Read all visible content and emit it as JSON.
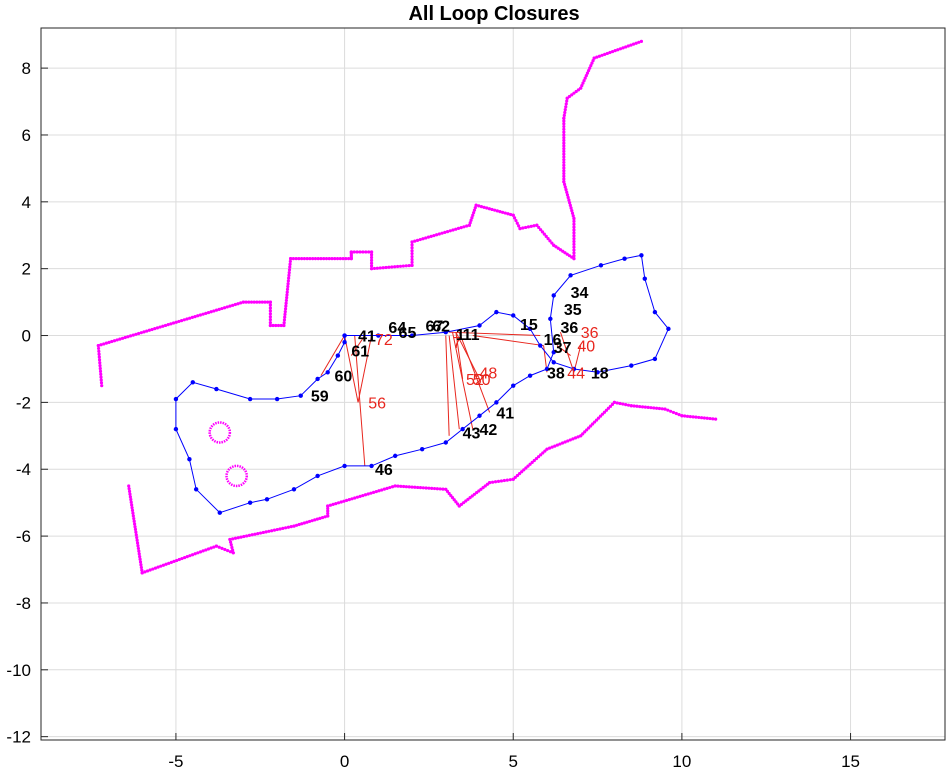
{
  "chart_data": {
    "type": "scatter",
    "title": "All Loop Closures",
    "xlabel": "",
    "ylabel": "",
    "xlim": [
      -9,
      17.8
    ],
    "ylim": [
      -12.1,
      9.2
    ],
    "xticks": [
      -5,
      0,
      5,
      10,
      15
    ],
    "yticks": [
      -12,
      -10,
      -8,
      -6,
      -4,
      -2,
      0,
      2,
      4,
      6,
      8
    ],
    "grid": true,
    "colors": {
      "map": "#ff00ff",
      "trajectory": "#0000ff",
      "closure": "#e8261e",
      "grid": "#dcdcdc",
      "text": "#000000"
    },
    "map_outline": [
      [
        -7.2,
        -1.5
      ],
      [
        -7.3,
        -0.3
      ],
      [
        -3.0,
        1.0
      ],
      [
        -2.2,
        1.0
      ],
      [
        -2.2,
        0.3
      ],
      [
        -1.8,
        0.3
      ],
      [
        -1.6,
        2.3
      ],
      [
        0.2,
        2.3
      ],
      [
        0.2,
        2.5
      ],
      [
        0.8,
        2.5
      ],
      [
        0.8,
        2.0
      ],
      [
        2.0,
        2.1
      ],
      [
        2.0,
        2.8
      ],
      [
        3.7,
        3.3
      ],
      [
        3.9,
        3.9
      ],
      [
        5.0,
        3.6
      ],
      [
        5.2,
        3.2
      ],
      [
        5.7,
        3.3
      ],
      [
        6.2,
        2.7
      ],
      [
        6.8,
        2.3
      ],
      [
        6.8,
        3.5
      ],
      [
        6.5,
        4.6
      ],
      [
        6.5,
        6.5
      ],
      [
        6.6,
        7.1
      ],
      [
        7.0,
        7.4
      ],
      [
        7.4,
        8.3
      ],
      [
        8.8,
        8.8
      ]
    ],
    "map_outline_lower": [
      [
        -6.4,
        -4.5
      ],
      [
        -6.0,
        -7.1
      ],
      [
        -3.8,
        -6.3
      ],
      [
        -3.3,
        -6.5
      ],
      [
        -3.4,
        -6.1
      ],
      [
        -1.5,
        -5.7
      ],
      [
        -0.5,
        -5.4
      ],
      [
        -0.5,
        -5.1
      ],
      [
        1.5,
        -4.5
      ],
      [
        3.0,
        -4.6
      ],
      [
        3.4,
        -5.1
      ],
      [
        4.3,
        -4.4
      ],
      [
        5.0,
        -4.3
      ],
      [
        6.0,
        -3.4
      ],
      [
        7.0,
        -3.0
      ],
      [
        8.0,
        -2.0
      ],
      [
        8.5,
        -2.1
      ],
      [
        9.5,
        -2.2
      ],
      [
        10.0,
        -2.4
      ],
      [
        11.0,
        -2.5
      ]
    ],
    "circles": [
      {
        "x": -3.7,
        "y": -2.9,
        "r": 0.3
      },
      {
        "x": -3.2,
        "y": -4.2,
        "r": 0.3
      }
    ],
    "trajectory": [
      [
        0.0,
        0.0
      ],
      [
        1.0,
        0.0
      ],
      [
        2.0,
        0.0
      ],
      [
        3.0,
        0.1
      ],
      [
        4.0,
        0.3
      ],
      [
        4.5,
        0.7
      ],
      [
        5.0,
        0.6
      ],
      [
        5.5,
        0.2
      ],
      [
        5.8,
        -0.3
      ],
      [
        6.2,
        -0.8
      ],
      [
        6.8,
        -1.0
      ],
      [
        7.5,
        -1.1
      ],
      [
        8.5,
        -0.9
      ],
      [
        9.2,
        -0.7
      ],
      [
        9.6,
        0.2
      ],
      [
        9.2,
        0.7
      ],
      [
        8.9,
        1.7
      ],
      [
        8.8,
        2.4
      ],
      [
        8.3,
        2.3
      ],
      [
        7.6,
        2.1
      ],
      [
        6.7,
        1.8
      ],
      [
        6.2,
        1.2
      ],
      [
        6.1,
        0.5
      ],
      [
        6.2,
        -0.5
      ],
      [
        6.0,
        -1.0
      ],
      [
        5.5,
        -1.2
      ],
      [
        5.0,
        -1.5
      ],
      [
        4.5,
        -2.0
      ],
      [
        4.0,
        -2.4
      ],
      [
        3.5,
        -2.8
      ],
      [
        3.0,
        -3.2
      ],
      [
        2.3,
        -3.4
      ],
      [
        1.5,
        -3.6
      ],
      [
        0.8,
        -3.9
      ],
      [
        0.0,
        -3.9
      ],
      [
        -0.8,
        -4.2
      ],
      [
        -1.5,
        -4.6
      ],
      [
        -2.3,
        -4.9
      ],
      [
        -2.8,
        -5.0
      ],
      [
        -3.7,
        -5.3
      ],
      [
        -4.4,
        -4.6
      ],
      [
        -4.6,
        -3.7
      ],
      [
        -5.0,
        -2.8
      ],
      [
        -5.0,
        -1.9
      ],
      [
        -4.5,
        -1.4
      ],
      [
        -3.8,
        -1.6
      ],
      [
        -2.8,
        -1.9
      ],
      [
        -2.0,
        -1.9
      ],
      [
        -1.3,
        -1.8
      ],
      [
        -0.8,
        -1.3
      ],
      [
        -0.5,
        -1.1
      ],
      [
        -0.2,
        -0.6
      ],
      [
        0.0,
        -0.2
      ],
      [
        0.0,
        0.0
      ]
    ],
    "closures": [
      [
        [
          0.4,
          -2.0
        ],
        [
          0.0,
          0.0
        ]
      ],
      [
        [
          0.4,
          -2.0
        ],
        [
          0.8,
          0.0
        ]
      ],
      [
        [
          0.6,
          -3.9
        ],
        [
          0.3,
          0.0
        ]
      ],
      [
        [
          3.1,
          -3.0
        ],
        [
          3.0,
          0.0
        ]
      ],
      [
        [
          3.4,
          -2.8
        ],
        [
          3.1,
          0.0
        ]
      ],
      [
        [
          3.8,
          -2.8
        ],
        [
          3.2,
          0.1
        ]
      ],
      [
        [
          4.3,
          -2.3
        ],
        [
          3.4,
          0.1
        ]
      ],
      [
        [
          3.5,
          -1.3
        ],
        [
          3.3,
          0.1
        ]
      ],
      [
        [
          4.0,
          -1.3
        ],
        [
          3.3,
          0.1
        ]
      ],
      [
        [
          5.8,
          0.0
        ],
        [
          3.1,
          0.1
        ]
      ],
      [
        [
          5.9,
          -0.3
        ],
        [
          3.8,
          0.0
        ]
      ],
      [
        [
          6.8,
          -1.1
        ],
        [
          6.4,
          0.1
        ]
      ],
      [
        [
          6.8,
          -1.1
        ],
        [
          7.0,
          -0.3
        ]
      ],
      [
        [
          6.7,
          -0.6
        ],
        [
          6.3,
          -0.3
        ]
      ],
      [
        [
          0.2,
          -0.6
        ],
        [
          0.6,
          0.0
        ]
      ],
      [
        [
          -0.7,
          -1.2
        ],
        [
          0.0,
          0.0
        ]
      ],
      [
        [
          6.0,
          -1.1
        ],
        [
          5.9,
          -0.3
        ]
      ]
    ],
    "node_labels": [
      {
        "text": "1",
        "x": 3.3,
        "y": 0.05
      },
      {
        "text": "11",
        "x": 3.5,
        "y": 0.05
      },
      {
        "text": "15",
        "x": 5.2,
        "y": 0.35
      },
      {
        "text": "16",
        "x": 5.9,
        "y": -0.1
      },
      {
        "text": "18",
        "x": 7.3,
        "y": -1.1
      },
      {
        "text": "34",
        "x": 6.7,
        "y": 1.3
      },
      {
        "text": "35",
        "x": 6.5,
        "y": 0.8
      },
      {
        "text": "36",
        "x": 6.4,
        "y": 0.25
      },
      {
        "text": "37",
        "x": 6.2,
        "y": -0.35
      },
      {
        "text": "38",
        "x": 6.0,
        "y": -1.1
      },
      {
        "text": "41",
        "x": 4.5,
        "y": -2.3
      },
      {
        "text": "42",
        "x": 4.0,
        "y": -2.8
      },
      {
        "text": "43",
        "x": 3.5,
        "y": -2.9
      },
      {
        "text": "46",
        "x": 0.9,
        "y": -4.0
      },
      {
        "text": "59",
        "x": -1.0,
        "y": -1.8
      },
      {
        "text": "60",
        "x": -0.3,
        "y": -1.2
      },
      {
        "text": "61",
        "x": 0.2,
        "y": -0.45
      },
      {
        "text": "64",
        "x": 1.3,
        "y": 0.25
      },
      {
        "text": "65",
        "x": 1.6,
        "y": 0.1
      },
      {
        "text": "41",
        "x": 0.4,
        "y": 0.0
      },
      {
        "text": "67",
        "x": 2.4,
        "y": 0.3
      },
      {
        "text": "62",
        "x": 2.6,
        "y": 0.3
      }
    ],
    "closure_labels": [
      {
        "text": "56",
        "x": 0.7,
        "y": -2.0
      },
      {
        "text": "52",
        "x": 3.6,
        "y": -1.3
      },
      {
        "text": "50",
        "x": 3.8,
        "y": -1.3
      },
      {
        "text": "48",
        "x": 4.0,
        "y": -1.1
      },
      {
        "text": "36",
        "x": 7.0,
        "y": 0.1
      },
      {
        "text": "40",
        "x": 6.9,
        "y": -0.3
      },
      {
        "text": "44",
        "x": 6.6,
        "y": -1.1
      },
      {
        "text": "7",
        "x": 3.2,
        "y": -0.2
      },
      {
        "text": "72",
        "x": 0.9,
        "y": -0.1
      }
    ]
  }
}
